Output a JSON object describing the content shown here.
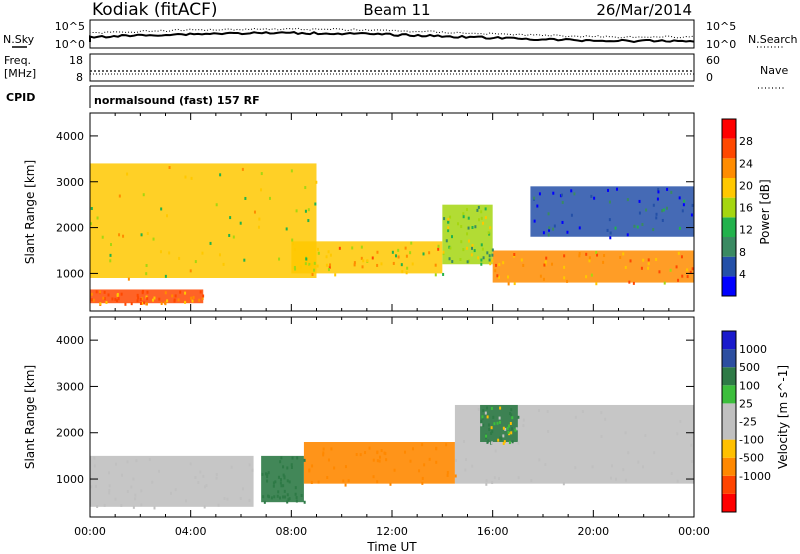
{
  "header": {
    "station": "Kodiak (fitACF)",
    "beam": "Beam 11",
    "date": "26/Mar/2014"
  },
  "status_panels": {
    "nsky_label": "N.Sky",
    "nsearch_label": "N.Search",
    "nsky_ticks": [
      "10^5",
      "10^0"
    ],
    "nsearch_ticks": [
      "10^5",
      "10^0"
    ],
    "freq_label": "Freq.",
    "freq_unit": "[MHz]",
    "freq_ticks": [
      "18",
      "8"
    ],
    "nave_label": "Nave",
    "nave_ticks": [
      "60",
      "0"
    ],
    "cpid_label": "CPID",
    "cpid_value": "normalsound (fast) 157 RF"
  },
  "colors": {
    "power_scale": [
      "#0000ff",
      "#2450a8",
      "#3a8a62",
      "#22b24c",
      "#a5d610",
      "#ffc800",
      "#ff8c00",
      "#ff4800",
      "#ff0000"
    ],
    "velocity_scale": [
      "#ff0000",
      "#ff4400",
      "#ff8800",
      "#ffc000",
      "#c0c0c0",
      "#c0c0c0",
      "#3cbe3c",
      "#2e7a46",
      "#2c4ea0",
      "#1a1acc"
    ],
    "ground_scatter": "#c0c0c0"
  },
  "chart_data": [
    {
      "type": "heatmap",
      "panel": "power",
      "xlabel": "Time UT",
      "ylabel": "Slant Range [km]",
      "xlim": [
        "00:00",
        "24:00"
      ],
      "ylim": [
        180,
        4500
      ],
      "x_ticks": [
        "00:00",
        "04:00",
        "08:00",
        "12:00",
        "16:00",
        "20:00",
        "00:00"
      ],
      "y_ticks": [
        1000,
        2000,
        3000,
        4000
      ],
      "colorbar": {
        "label": "Power [dB]",
        "range": [
          0,
          32
        ],
        "ticks": [
          4,
          8,
          12,
          16,
          20,
          24,
          28
        ]
      },
      "grid": false,
      "features": [
        {
          "segment": "strong lower band",
          "start_hour": 0.0,
          "end_hour": 4.5,
          "range_km": [
            350,
            650
          ],
          "power_db": 28
        },
        {
          "segment": "stripes",
          "start_hour": 0.0,
          "end_hour": 9.0,
          "range_km": [
            900,
            3400
          ],
          "power_db": 20
        },
        {
          "segment": "main band",
          "start_hour": 8.0,
          "end_hour": 14.0,
          "range_km": [
            1000,
            1700
          ],
          "power_db": 22
        },
        {
          "segment": "rising arc",
          "start_hour": 14.0,
          "end_hour": 16.0,
          "range_km": [
            1200,
            2500
          ],
          "power_db": 16
        },
        {
          "segment": "main band",
          "start_hour": 16.0,
          "end_hour": 24.0,
          "range_km": [
            800,
            1500
          ],
          "power_db": 26
        },
        {
          "segment": "upper weak band",
          "start_hour": 17.5,
          "end_hour": 24.0,
          "range_km": [
            1800,
            2900
          ],
          "power_db": 6
        }
      ]
    },
    {
      "type": "heatmap",
      "panel": "velocity",
      "xlabel": "Time UT",
      "ylabel": "Slant Range [km]",
      "xlim": [
        "00:00",
        "24:00"
      ],
      "ylim": [
        180,
        4500
      ],
      "x_ticks": [
        "00:00",
        "04:00",
        "08:00",
        "12:00",
        "16:00",
        "20:00",
        "00:00"
      ],
      "y_ticks": [
        1000,
        2000,
        3000,
        4000
      ],
      "colorbar": {
        "label": "Velocity [m s^-1]",
        "range": [
          -1500,
          1500
        ],
        "ticks": [
          1000,
          500,
          100,
          25,
          -25,
          -100,
          -500,
          -1000
        ]
      },
      "grid": false,
      "features": [
        {
          "segment": "ground scatter",
          "start_hour": 0.0,
          "end_hour": 6.5,
          "range_km": [
            400,
            1500
          ],
          "velocity": 0
        },
        {
          "segment": "flow",
          "start_hour": 6.8,
          "end_hour": 8.5,
          "range_km": [
            500,
            1500
          ],
          "velocity": 300
        },
        {
          "segment": "flow",
          "start_hour": 8.5,
          "end_hour": 14.5,
          "range_km": [
            900,
            1800
          ],
          "velocity": -300
        },
        {
          "segment": "ground scatter",
          "start_hour": 14.5,
          "end_hour": 24.0,
          "range_km": [
            900,
            2600
          ],
          "velocity": 0
        },
        {
          "segment": "flow",
          "start_hour": 15.5,
          "end_hour": 17.0,
          "range_km": [
            1800,
            2600
          ],
          "velocity": 100
        }
      ]
    }
  ]
}
